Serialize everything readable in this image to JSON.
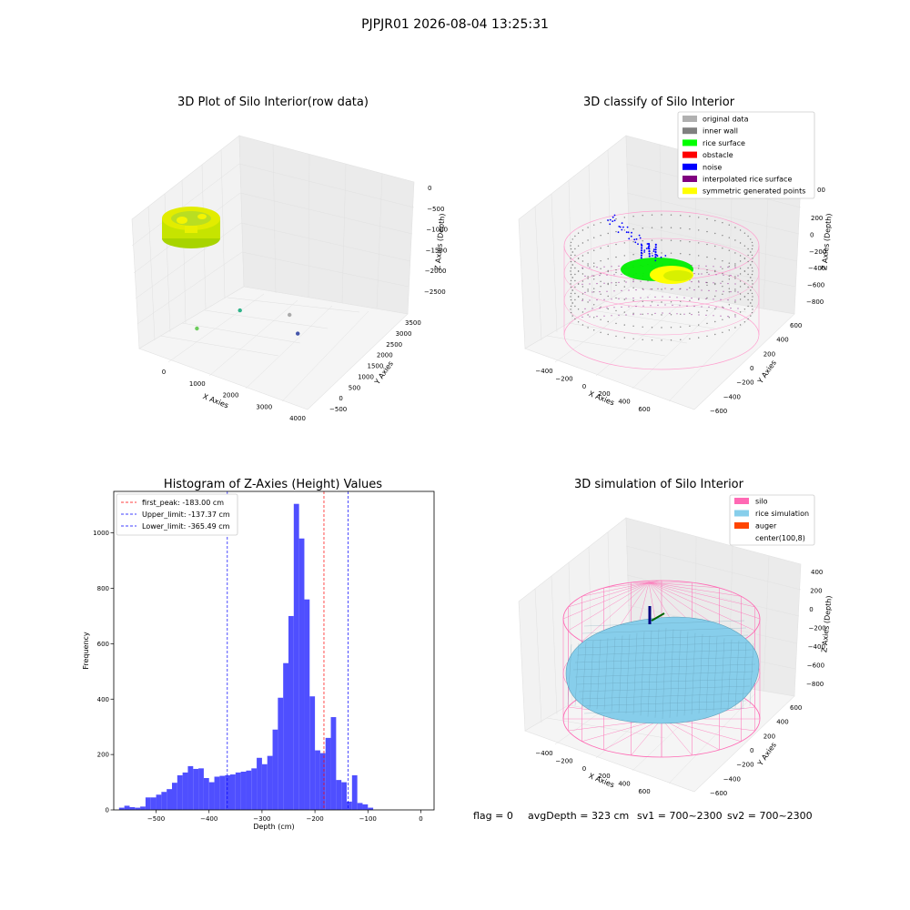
{
  "suptitle": "PJPJR01 2026-08-04 13:25:31",
  "footer": {
    "flag": "flag = 0",
    "avg_depth": "avgDepth = 323 cm",
    "sv1": "sv1 = 700~2300",
    "sv2": "sv2 = 700~2300"
  },
  "colors": {
    "silo": "#ff69b4",
    "rice_simulation": "#87ceeb",
    "auger": "#ff4500",
    "original": "#b0b0b0",
    "inner_wall": "#808080",
    "rice_surface": "#00ff00",
    "obstacle": "#ff0000",
    "noise": "#0000ff",
    "interpolated": "#800080",
    "symmetric": "#ffff00",
    "hist_bar": "#4f4fff"
  },
  "chart_data": [
    {
      "type": "scatter",
      "projection": "3d",
      "title": "3D Plot of Silo Interior(row data)",
      "xlabel": "X Axies",
      "ylabel": "Y Axies",
      "zlabel": "Z Axies (Depth)",
      "x_ticks": [
        "0",
        "1000",
        "2000",
        "3000",
        "4000"
      ],
      "y_ticks": [
        "−500",
        "0",
        "500",
        "1000",
        "1500",
        "2000",
        "2500",
        "3000",
        "3500"
      ],
      "z_ticks": [
        "0",
        "−500",
        "−1000",
        "−1500",
        "−2000",
        "−2500"
      ],
      "outliers": [
        {
          "x": 800,
          "y": 300,
          "z": -1500
        },
        {
          "x": 1700,
          "y": 900,
          "z": -2100
        },
        {
          "x": 2800,
          "y": 1500,
          "z": -2000
        },
        {
          "x": 3900,
          "y": 200,
          "z": -2600
        }
      ]
    },
    {
      "type": "scatter",
      "projection": "3d",
      "title": "3D classify of Silo Interior",
      "xlabel": "X Axies",
      "ylabel": "Y Axies",
      "zlabel": "Z Axies (Depth)",
      "x_ticks": [
        "−400",
        "−200",
        "0",
        "200",
        "400",
        "600"
      ],
      "y_ticks": [
        "−600",
        "−400",
        "−200",
        "0",
        "200",
        "400",
        "600"
      ],
      "z_ticks": [
        "200",
        "0",
        "−200",
        "−400",
        "−600",
        "−800"
      ],
      "z_top_partial": "00",
      "legend": [
        "original data",
        "inner wall",
        "rice surface",
        "obstacle",
        "noise",
        "interpolated rice surface",
        "symmetric generated points"
      ],
      "legend_placement": "top-right"
    },
    {
      "type": "bar",
      "title": "Histogram of Z-Axies (Height) Values",
      "xlabel": "Depth (cm)",
      "ylabel": "Frequency",
      "xlim": [
        -580,
        25
      ],
      "ylim": [
        0,
        1150
      ],
      "x_ticks": [
        -500,
        -400,
        -300,
        -200,
        -100,
        0
      ],
      "x_tick_labels": [
        "−500",
        "−400",
        "−300",
        "−200",
        "−100",
        "0"
      ],
      "y_ticks": [
        0,
        200,
        400,
        600,
        800,
        1000
      ],
      "bin_start": -580,
      "bin_width": 10,
      "values": [
        0,
        8,
        15,
        10,
        8,
        12,
        45,
        45,
        55,
        65,
        75,
        98,
        125,
        135,
        158,
        148,
        150,
        115,
        100,
        120,
        123,
        125,
        128,
        135,
        138,
        142,
        150,
        188,
        165,
        195,
        290,
        405,
        530,
        700,
        1105,
        980,
        760,
        410,
        215,
        205,
        260,
        335,
        108,
        100,
        30,
        125,
        25,
        20,
        8
      ],
      "legend_placement": "top-left",
      "lines": [
        {
          "label": "first_peak: -183.00 cm",
          "x": -183.0,
          "color": "#ff0000"
        },
        {
          "label": "Upper_limit: -137.37 cm",
          "x": -137.37,
          "color": "#0000ff"
        },
        {
          "label": "Lower_limit: -365.49 cm",
          "x": -365.49,
          "color": "#0000ff"
        }
      ]
    },
    {
      "type": "surface",
      "projection": "3d",
      "title": "3D simulation of Silo Interior",
      "xlabel": "X Axies",
      "ylabel": "Y Axies",
      "zlabel": "Z Axies (Depth)",
      "x_ticks": [
        "−400",
        "−200",
        "0",
        "200",
        "400",
        "600"
      ],
      "y_ticks": [
        "−600",
        "−400",
        "−200",
        "0",
        "200",
        "400",
        "600"
      ],
      "z_ticks": [
        "400",
        "200",
        "0",
        "−200",
        "−400",
        "−600",
        "−800"
      ],
      "legend": [
        "silo",
        "rice simulation",
        "auger",
        "center(100,8)"
      ],
      "legend_placement": "top-right"
    }
  ]
}
